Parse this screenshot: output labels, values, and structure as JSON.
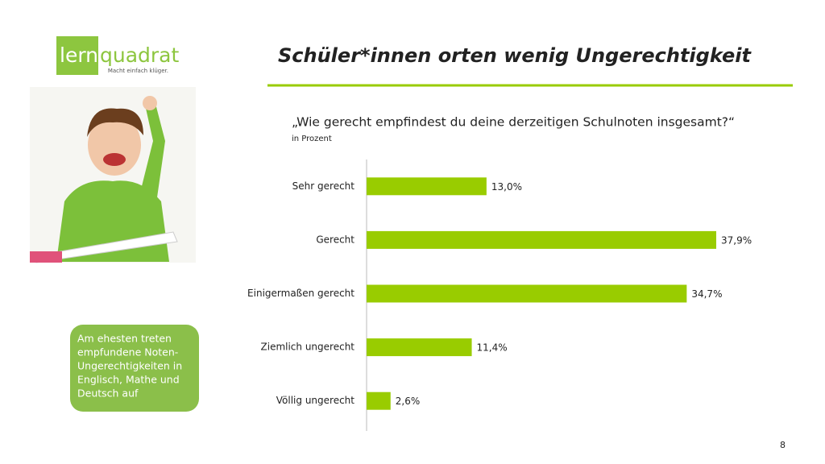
{
  "logo": {
    "word_left": "lern",
    "word_right": "quadrat",
    "tagline": "Macht einfach klüger."
  },
  "title": "Schüler*innen orten wenig Ungerechtigkeit",
  "callout": [
    "Am ehesten treten",
    "empfundene Noten-",
    "Ungerechtigkeiten in",
    "Englisch, Mathe und",
    "Deutsch auf"
  ],
  "page_number": "8",
  "chart_data": {
    "type": "bar",
    "orientation": "horizontal",
    "title": "„Wie gerecht empfindest du deine derzeitigen Schulnoten insgesamt?“",
    "subtitle": "in Prozent",
    "categories": [
      "Sehr gerecht",
      "Gerecht",
      "Einigermaßen gerecht",
      "Ziemlich ungerecht",
      "Völlig ungerecht"
    ],
    "values": [
      13.0,
      37.9,
      34.7,
      11.4,
      2.6
    ],
    "value_labels": [
      "13,0%",
      "37,9%",
      "34,7%",
      "11,4%",
      "2,6%"
    ],
    "color": "#99cc00"
  }
}
